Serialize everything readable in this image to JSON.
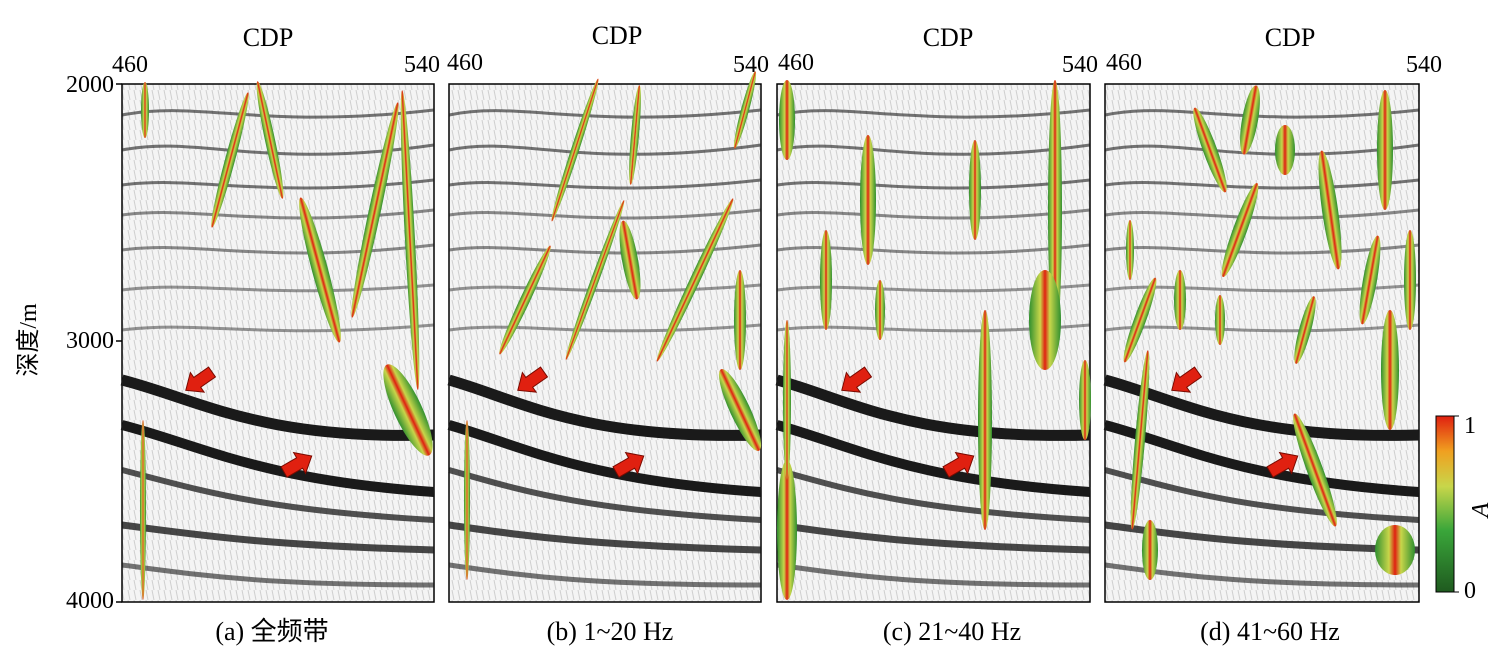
{
  "figure": {
    "y_axis_label": "深度/m",
    "y_ticks": [
      "2000",
      "3000",
      "4000"
    ],
    "colorbar": {
      "label": "A",
      "max_label": "1",
      "min_label": "0",
      "colors": [
        "#1f5a1f",
        "#3aa63a",
        "#c8d64a",
        "#f0a020",
        "#e02010"
      ]
    },
    "panels": [
      {
        "top_label": "CDP",
        "x_left": "460",
        "x_right": "540",
        "caption": "(a) 全频带"
      },
      {
        "top_label": "CDP",
        "x_left": "460",
        "x_right": "540",
        "caption": "(b) 1~20 Hz"
      },
      {
        "top_label": "CDP",
        "x_left": "460",
        "x_right": "540",
        "caption": "(c) 21~40 Hz"
      },
      {
        "top_label": "CDP",
        "x_left": "460",
        "x_right": "540",
        "caption": "(d) 41~60 Hz"
      }
    ]
  }
}
